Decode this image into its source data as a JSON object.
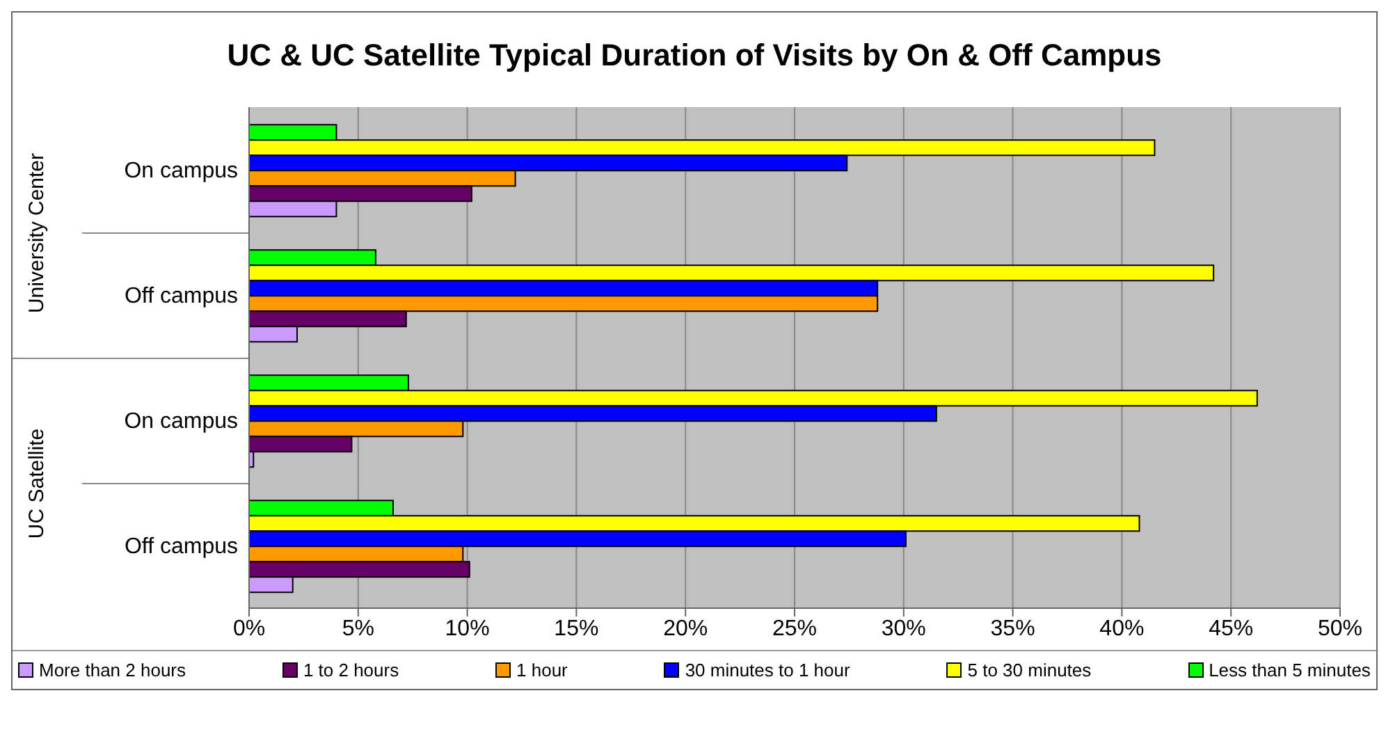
{
  "chart_data": {
    "type": "bar",
    "orientation": "horizontal",
    "title": "UC & UC Satellite Typical Duration of Visits by On & Off Campus",
    "categories": [
      "On campus",
      "Off campus",
      "On campus",
      "Off campus"
    ],
    "annotations": [
      "University Center",
      "UC Satellite"
    ],
    "series": [
      {
        "name": "More than 2 hours",
        "color": "#cc99ff",
        "values": [
          4.0,
          2.2,
          0.2,
          2.0
        ]
      },
      {
        "name": "1 to 2 hours",
        "color": "#660066",
        "values": [
          10.2,
          7.2,
          4.7,
          10.1
        ]
      },
      {
        "name": "1 hour",
        "color": "#ff9900",
        "values": [
          12.2,
          28.8,
          9.8,
          9.8
        ]
      },
      {
        "name": "30 minutes to 1 hour",
        "color": "#0000ff",
        "values": [
          27.4,
          28.8,
          31.5,
          30.1
        ]
      },
      {
        "name": "5 to 30 minutes",
        "color": "#ffff00",
        "values": [
          41.5,
          44.2,
          46.2,
          40.8
        ]
      },
      {
        "name": "Less than 5 minutes",
        "color": "#00ff00",
        "values": [
          4.0,
          5.8,
          7.3,
          6.6
        ]
      }
    ],
    "xlim": [
      0,
      50
    ],
    "xticks": [
      {
        "value": 0,
        "label": "0%"
      },
      {
        "value": 5,
        "label": "5%"
      },
      {
        "value": 10,
        "label": "10%"
      },
      {
        "value": 15,
        "label": "15%"
      },
      {
        "value": 20,
        "label": "20%"
      },
      {
        "value": 25,
        "label": "25%"
      },
      {
        "value": 30,
        "label": "30%"
      },
      {
        "value": 35,
        "label": "35%"
      },
      {
        "value": 40,
        "label": "40%"
      },
      {
        "value": 45,
        "label": "45%"
      },
      {
        "value": 50,
        "label": "50%"
      }
    ],
    "grid": "x",
    "legend": "bottom"
  }
}
